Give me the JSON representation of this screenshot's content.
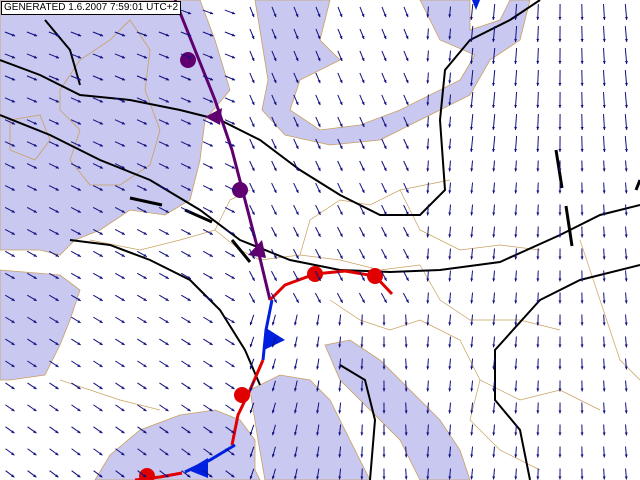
{
  "header": {
    "generated": "GENERATED 1.6.2007 7:59:01 UTC+2"
  }
}
